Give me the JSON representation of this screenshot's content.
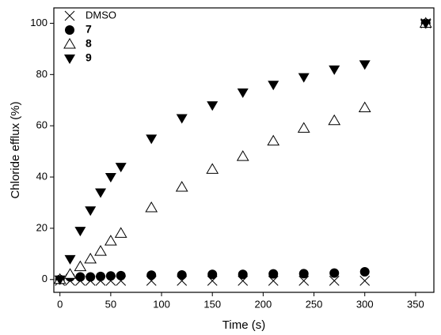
{
  "chart_data": {
    "type": "scatter",
    "x_label": "Time (s)",
    "y_label": "Chloride efflux (%)",
    "xlim": [
      -6,
      368
    ],
    "ylim": [
      -5,
      106
    ],
    "xticks": [
      0,
      50,
      100,
      150,
      200,
      250,
      300,
      350
    ],
    "yticks": [
      0,
      20,
      40,
      60,
      80,
      100
    ],
    "legend": "upper left",
    "series": [
      {
        "name": "DMSO",
        "color": "#000000",
        "marker": "x",
        "x": [
          0,
          10,
          20,
          30,
          40,
          50,
          60,
          90,
          120,
          150,
          180,
          210,
          240,
          270,
          300,
          360
        ],
        "values": [
          -0.5,
          -0.5,
          -0.5,
          -0.5,
          -0.5,
          -0.5,
          -0.5,
          -0.5,
          -0.5,
          -0.5,
          -0.5,
          -0.5,
          -0.5,
          -0.5,
          -0.5,
          100
        ]
      },
      {
        "name": "7",
        "color": "#000000",
        "marker": "circle",
        "x": [
          0,
          10,
          20,
          30,
          40,
          50,
          60,
          90,
          120,
          150,
          180,
          210,
          240,
          270,
          300,
          360
        ],
        "values": [
          0,
          1,
          1,
          1,
          1.2,
          1.4,
          1.5,
          1.7,
          1.8,
          2,
          2,
          2.2,
          2.3,
          2.5,
          3,
          100
        ]
      },
      {
        "name": "8",
        "color": "#000000",
        "marker": "triangle-up-open",
        "x": [
          0,
          10,
          20,
          30,
          40,
          50,
          60,
          90,
          120,
          150,
          180,
          210,
          240,
          270,
          300,
          360
        ],
        "values": [
          0,
          2,
          5,
          8,
          11,
          15,
          18,
          28,
          36,
          43,
          48,
          54,
          59,
          62,
          67,
          100
        ]
      },
      {
        "name": "9",
        "color": "#000000",
        "marker": "triangle-down",
        "x": [
          0,
          10,
          20,
          30,
          40,
          50,
          60,
          90,
          120,
          150,
          180,
          210,
          240,
          270,
          300,
          360
        ],
        "values": [
          0,
          8,
          19,
          27,
          34,
          40,
          44,
          55,
          63,
          68,
          73,
          76,
          79,
          82,
          84,
          100
        ]
      }
    ]
  }
}
